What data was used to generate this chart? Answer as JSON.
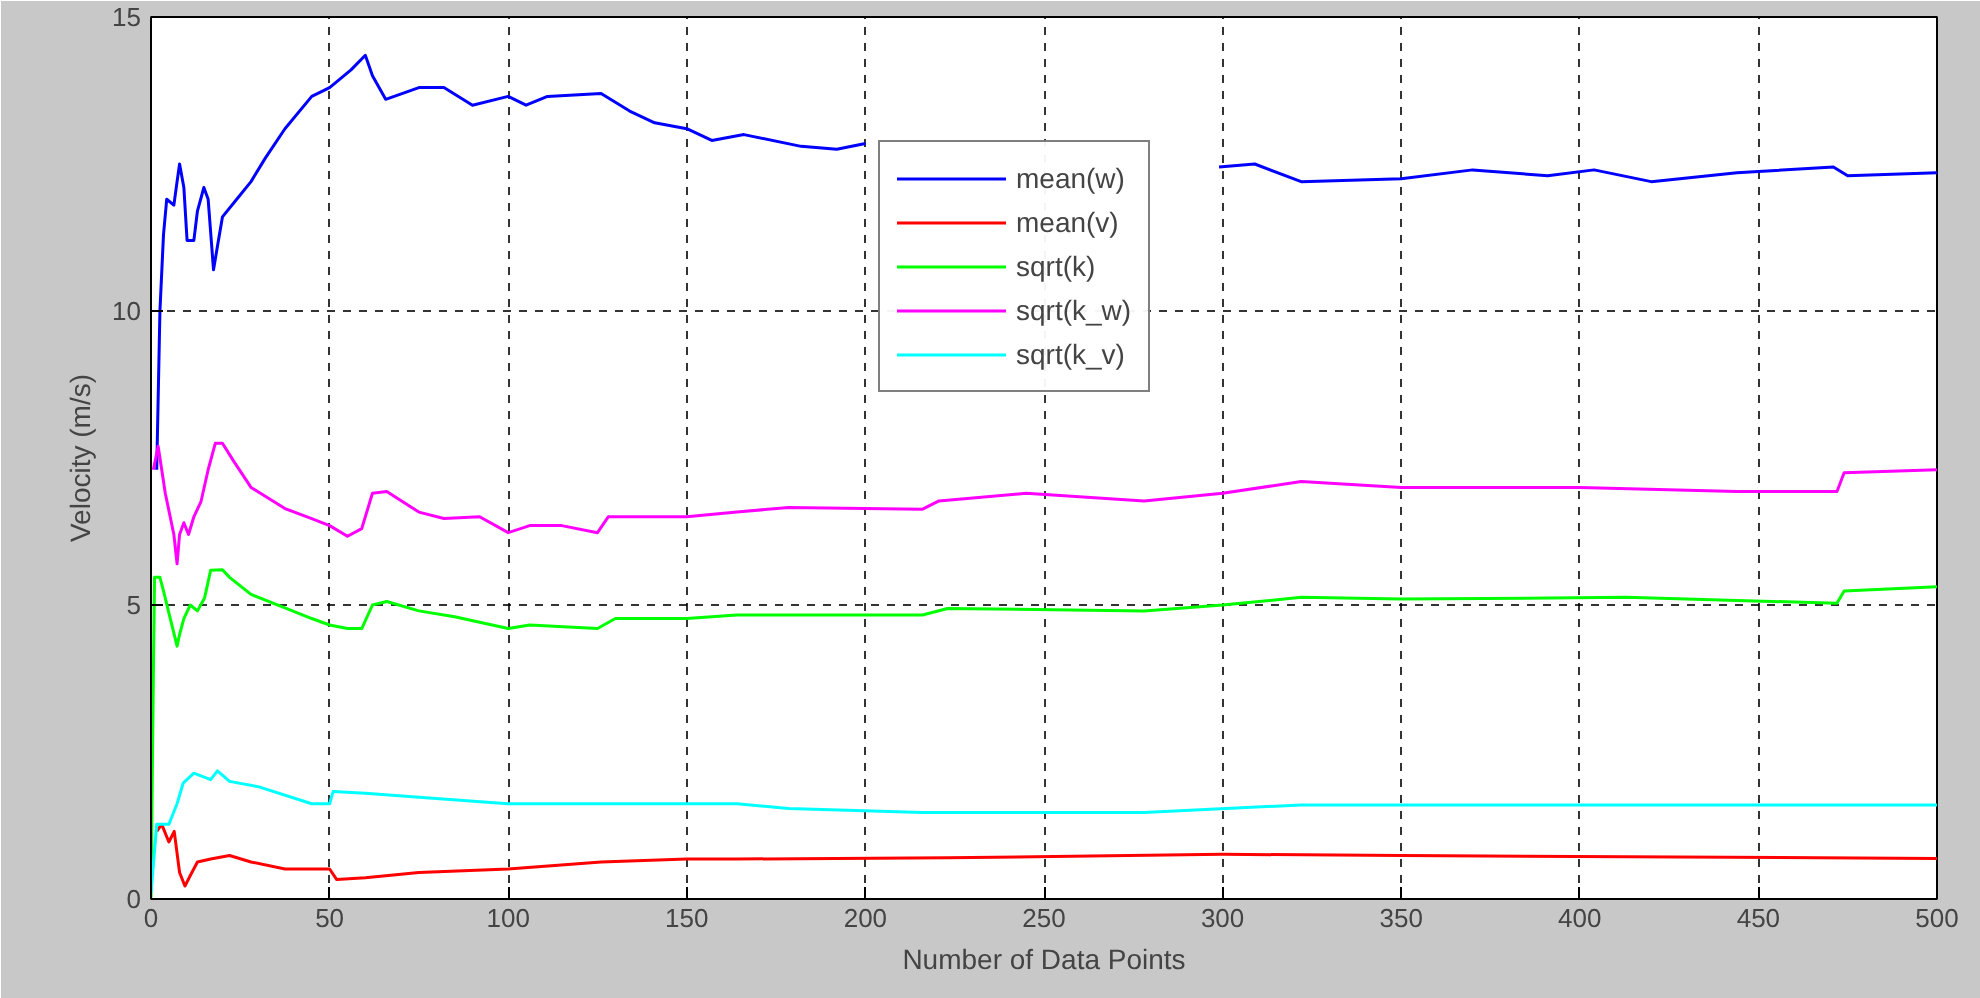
{
  "chart_data": {
    "type": "line",
    "xlabel": "Number of Data Points",
    "ylabel": "Velocity (m/s)",
    "xlim": [
      0,
      500
    ],
    "ylim": [
      0,
      15
    ],
    "xticks": [
      0,
      50,
      100,
      150,
      200,
      250,
      300,
      350,
      400,
      450,
      500
    ],
    "yticks": [
      0,
      5,
      10,
      15
    ],
    "grid": true,
    "legend": "top",
    "line_style": "solid",
    "marker": "none",
    "series": [
      {
        "name": "mean(w)",
        "color": "#0000ff",
        "x": [
          1.6,
          2.5,
          3.5,
          4.4,
          6.4,
          7.3,
          8,
          9.2,
          10.1,
          12,
          13,
          14.8,
          16,
          17.5,
          18.6,
          20,
          24,
          28,
          32,
          37.5,
          45,
          50,
          56,
          60,
          62,
          65.7,
          75,
          82,
          90,
          100,
          105,
          111,
          126,
          134,
          141,
          150,
          157,
          166,
          182,
          192,
          200,
          250,
          299,
          309,
          322,
          350,
          370,
          391,
          404,
          420,
          444,
          471,
          475,
          500
        ],
        "values": [
          7.3,
          10.0,
          11.3,
          11.9,
          11.8,
          12.2,
          12.5,
          12.1,
          11.2,
          11.2,
          11.7,
          12.1,
          11.9,
          10.7,
          11.1,
          11.6,
          11.9,
          12.2,
          12.6,
          13.1,
          13.65,
          13.8,
          14.1,
          14.35,
          14.0,
          13.6,
          13.8,
          13.8,
          13.5,
          13.65,
          13.5,
          13.65,
          13.7,
          13.4,
          13.2,
          13.1,
          12.9,
          13.0,
          12.8,
          12.75,
          12.85,
          null,
          12.45,
          12.5,
          12.2,
          12.25,
          12.4,
          12.3,
          12.4,
          12.2,
          12.35,
          12.45,
          12.3,
          12.35
        ]
      },
      {
        "name": "mean(v)",
        "color": "#ff0000",
        "x": [
          1.6,
          3,
          5,
          6.5,
          8,
          9.5,
          11,
          13,
          16.7,
          22,
          28,
          37.5,
          50,
          52,
          60,
          75,
          100,
          126,
          150,
          164,
          223,
          300,
          350,
          500
        ],
        "values": [
          1.15,
          1.27,
          0.97,
          1.15,
          0.45,
          0.22,
          0.4,
          0.63,
          0.68,
          0.74,
          0.63,
          0.51,
          0.51,
          0.33,
          0.36,
          0.45,
          0.51,
          0.63,
          0.68,
          0.68,
          0.7,
          0.76,
          0.74,
          0.69
        ]
      },
      {
        "name": "sqrt(k)",
        "color": "#00ff00",
        "x": [
          0,
          0.66,
          1,
          2.5,
          3.5,
          5.4,
          7.3,
          8,
          9.2,
          11,
          13,
          15,
          16.7,
          20,
          22,
          28,
          37.5,
          45,
          50,
          55,
          59,
          62,
          66,
          75,
          85,
          100,
          106,
          125,
          130,
          150,
          164,
          216,
          223,
          278,
          300,
          322,
          350,
          413,
          472,
          474,
          500
        ],
        "values": [
          0,
          3.8,
          5.47,
          5.47,
          5.24,
          4.77,
          4.3,
          4.5,
          4.77,
          5.0,
          4.9,
          5.12,
          5.59,
          5.6,
          5.47,
          5.18,
          4.95,
          4.77,
          4.66,
          4.6,
          4.6,
          5.0,
          5.06,
          4.9,
          4.8,
          4.6,
          4.66,
          4.6,
          4.77,
          4.77,
          4.83,
          4.83,
          4.94,
          4.9,
          5.0,
          5.13,
          5.1,
          5.13,
          5.03,
          5.24,
          5.31
        ]
      },
      {
        "name": "sqrt(k_w)",
        "color": "#ff00ff",
        "x": [
          0.66,
          2,
          4,
          6.4,
          7.3,
          8,
          9.2,
          10.5,
          12,
          14,
          16,
          18,
          20,
          23,
          28,
          37.5,
          45,
          50,
          55,
          59,
          62,
          66,
          75,
          82,
          92,
          100,
          106,
          115,
          125,
          128,
          141,
          150,
          164,
          178.5,
          216,
          220.6,
          245,
          278,
          300,
          322,
          350,
          400,
          444,
          472,
          474,
          500
        ],
        "values": [
          7.3,
          7.7,
          6.9,
          6.2,
          5.7,
          6.2,
          6.4,
          6.2,
          6.5,
          6.76,
          7.3,
          7.75,
          7.75,
          7.46,
          7.0,
          6.64,
          6.47,
          6.35,
          6.17,
          6.3,
          6.9,
          6.93,
          6.58,
          6.47,
          6.5,
          6.23,
          6.35,
          6.35,
          6.23,
          6.5,
          6.5,
          6.5,
          6.58,
          6.66,
          6.63,
          6.77,
          6.9,
          6.77,
          6.9,
          7.1,
          7.0,
          7.0,
          6.93,
          6.93,
          7.25,
          7.3
        ]
      },
      {
        "name": "sqrt(k_v)",
        "color": "#00ffff",
        "x": [
          0,
          1.6,
          5,
          7.3,
          9,
          12,
          16.7,
          18.6,
          22,
          30,
          45,
          50,
          51,
          60,
          75,
          100,
          130,
          164,
          178.5,
          216,
          278,
          322,
          500
        ],
        "values": [
          0.1,
          1.27,
          1.27,
          1.62,
          1.97,
          2.14,
          2.03,
          2.18,
          2.0,
          1.91,
          1.62,
          1.62,
          1.83,
          1.8,
          1.73,
          1.62,
          1.62,
          1.62,
          1.54,
          1.47,
          1.47,
          1.6,
          1.6
        ]
      }
    ]
  }
}
